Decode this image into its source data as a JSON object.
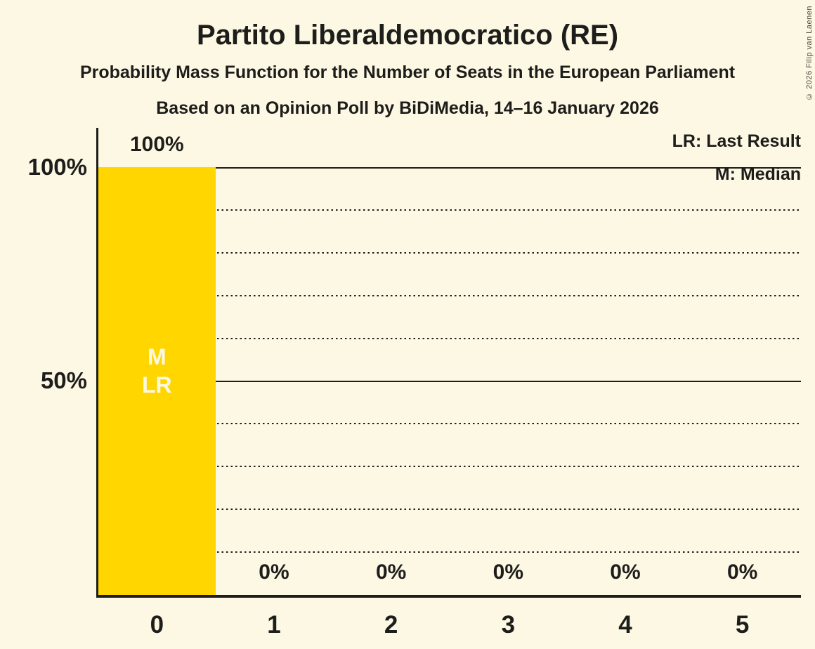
{
  "header": {
    "title": "Partito Liberaldemocratico (RE)",
    "subtitle": "Probability Mass Function for the Number of Seats in the European Parliament",
    "source_line": "Based on an Opinion Poll by BiDiMedia, 14–16 January 2026"
  },
  "copyright": "© 2026 Filip van Laenen",
  "legend": {
    "last_result": "LR: Last Result",
    "median": "M: Median"
  },
  "colors": {
    "background": "#FDF8E3",
    "bar": "#FFD600",
    "text": "#1D1D1B",
    "bar_annotation_text": "#FDF8E3",
    "gridline": "#1D1D1B"
  },
  "chart_data": {
    "type": "bar",
    "title": "Partito Liberaldemocratico (RE) — Probability Mass Function for the Number of Seats in the European Parliament",
    "categories": [
      "0",
      "1",
      "2",
      "3",
      "4",
      "5"
    ],
    "values": [
      100,
      0,
      0,
      0,
      0,
      0
    ],
    "bar_value_labels": [
      "100%",
      "0%",
      "0%",
      "0%",
      "0%",
      "0%"
    ],
    "y_axis": {
      "range": [
        0,
        100
      ],
      "tick_labels": [
        "100%",
        "50%"
      ],
      "tick_values": [
        100,
        50
      ],
      "solid_gridlines": [
        100,
        50
      ],
      "dotted_gridlines": [
        90,
        80,
        70,
        60,
        40,
        30,
        20,
        10
      ]
    },
    "annotations": [
      {
        "category": "0",
        "lines": [
          "M",
          "LR"
        ],
        "meaning": [
          "Median",
          "Last Result"
        ]
      }
    ],
    "legend_position": "top-right",
    "grid": "horizontal, dotted minor + solid at 50% and 100%"
  }
}
